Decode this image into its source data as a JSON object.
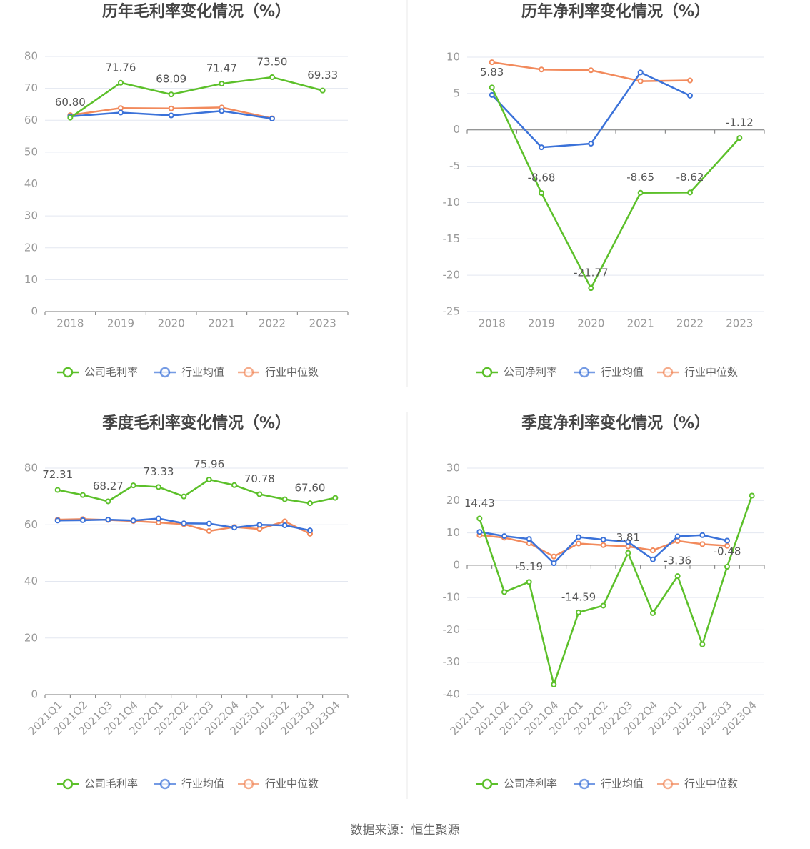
{
  "chart_data": [
    {
      "type": "line",
      "title": "历年毛利率变化情况（%）",
      "categories": [
        "2018",
        "2019",
        "2020",
        "2021",
        "2022",
        "2023"
      ],
      "ylim": [
        0,
        80
      ],
      "yticks": [
        0,
        10,
        20,
        30,
        40,
        50,
        60,
        70,
        80
      ],
      "grid": true,
      "series": [
        {
          "name": "公司毛利率",
          "color": "#5cc02a",
          "values": [
            60.8,
            71.76,
            68.09,
            71.47,
            73.5,
            69.33
          ],
          "value_labels": [
            "60.80",
            "71.76",
            "68.09",
            "71.47",
            "73.50",
            "69.33"
          ]
        },
        {
          "name": "行业均值",
          "color": "#3b72d9",
          "values": [
            61.2,
            62.4,
            61.5,
            62.9,
            60.5,
            null
          ]
        },
        {
          "name": "行业中位数",
          "color": "#f28a5c",
          "values": [
            61.6,
            63.8,
            63.7,
            64.0,
            60.6,
            null
          ]
        }
      ]
    },
    {
      "type": "line",
      "title": "历年净利率变化情况（%）",
      "categories": [
        "2018",
        "2019",
        "2020",
        "2021",
        "2022",
        "2023"
      ],
      "ylim": [
        -25,
        10
      ],
      "yticks": [
        -25,
        -20,
        -15,
        -10,
        -5,
        0,
        5,
        10
      ],
      "grid": true,
      "series": [
        {
          "name": "公司净利率",
          "color": "#5cc02a",
          "values": [
            5.83,
            -8.68,
            -21.77,
            -8.65,
            -8.62,
            -1.12
          ],
          "value_labels": [
            "5.83",
            "-8.68",
            "-21.77",
            "-8.65",
            "-8.62",
            "-1.12"
          ]
        },
        {
          "name": "行业均值",
          "color": "#3b72d9",
          "values": [
            4.8,
            -2.4,
            -1.9,
            7.9,
            4.7,
            null
          ]
        },
        {
          "name": "行业中位数",
          "color": "#f28a5c",
          "values": [
            9.3,
            8.3,
            8.2,
            6.7,
            6.8,
            null
          ]
        }
      ]
    },
    {
      "type": "line",
      "title": "季度毛利率变化情况（%）",
      "categories": [
        "2021Q1",
        "2021Q2",
        "2021Q3",
        "2021Q4",
        "2022Q1",
        "2022Q2",
        "2022Q3",
        "2022Q4",
        "2023Q1",
        "2023Q2",
        "2023Q3",
        "2023Q4"
      ],
      "ylim": [
        0,
        80
      ],
      "yticks": [
        0,
        20,
        40,
        60,
        80
      ],
      "grid": true,
      "series": [
        {
          "name": "公司毛利率",
          "color": "#5cc02a",
          "values": [
            72.31,
            70.5,
            68.27,
            73.9,
            73.33,
            70.0,
            75.96,
            74.0,
            70.78,
            69.0,
            67.6,
            69.5
          ],
          "value_labels": [
            "72.31",
            null,
            "68.27",
            null,
            "73.33",
            null,
            "75.96",
            null,
            "70.78",
            null,
            "67.60",
            null
          ]
        },
        {
          "name": "行业均值",
          "color": "#3b72d9",
          "values": [
            61.5,
            61.6,
            61.8,
            61.5,
            62.2,
            60.5,
            60.4,
            59.0,
            60.0,
            59.8,
            58.0,
            null
          ]
        },
        {
          "name": "行业中位数",
          "color": "#f28a5c",
          "values": [
            61.8,
            62.0,
            61.7,
            61.3,
            60.8,
            60.2,
            57.8,
            59.2,
            58.5,
            61.2,
            56.8,
            null
          ]
        }
      ]
    },
    {
      "type": "line",
      "title": "季度净利率变化情况（%）",
      "categories": [
        "2021Q1",
        "2021Q2",
        "2021Q3",
        "2021Q4",
        "2022Q1",
        "2022Q2",
        "2022Q3",
        "2022Q4",
        "2023Q1",
        "2023Q2",
        "2023Q3",
        "2023Q4"
      ],
      "ylim": [
        -40,
        30
      ],
      "yticks": [
        -40,
        -30,
        -20,
        -10,
        0,
        10,
        20,
        30
      ],
      "grid": true,
      "series": [
        {
          "name": "公司净利率",
          "color": "#5cc02a",
          "values": [
            14.43,
            -8.3,
            -5.19,
            -36.9,
            -14.59,
            -12.5,
            3.81,
            -14.8,
            -3.36,
            -24.5,
            -0.48,
            21.5
          ],
          "value_labels": [
            "14.43",
            null,
            "-5.19",
            null,
            "-14.59",
            null,
            "3.81",
            null,
            "-3.36",
            null,
            "-0.48",
            null
          ]
        },
        {
          "name": "行业均值",
          "color": "#3b72d9",
          "values": [
            10.3,
            9.0,
            8.1,
            0.6,
            8.7,
            7.9,
            7.2,
            1.8,
            8.9,
            9.3,
            7.6,
            null
          ]
        },
        {
          "name": "行业中位数",
          "color": "#f28a5c",
          "values": [
            9.3,
            8.5,
            6.8,
            2.7,
            6.7,
            6.2,
            5.8,
            4.6,
            7.5,
            6.5,
            6.0,
            null
          ]
        }
      ]
    }
  ],
  "source": "数据来源：恒生聚源"
}
